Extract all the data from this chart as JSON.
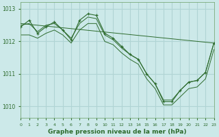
{
  "title": "Graphe pression niveau de la mer (hPa)",
  "background_color": "#cce9e9",
  "grid_color": "#b0d4d4",
  "line_color": "#2d6b2d",
  "xlim": [
    0,
    23
  ],
  "ylim": [
    1009.65,
    1013.2
  ],
  "yticks": [
    1010,
    1011,
    1012,
    1013
  ],
  "xticks": [
    0,
    1,
    2,
    3,
    4,
    5,
    6,
    7,
    8,
    9,
    10,
    11,
    12,
    13,
    14,
    15,
    16,
    17,
    18,
    19,
    20,
    21,
    22,
    23
  ],
  "main_line": {
    "x": [
      0,
      1,
      2,
      3,
      4,
      5,
      6,
      7,
      8,
      9,
      10,
      11,
      12,
      13,
      14,
      15,
      16,
      17,
      18,
      19,
      20,
      21,
      22,
      23
    ],
    "y": [
      1012.45,
      1012.65,
      1012.25,
      1012.45,
      1012.6,
      1012.35,
      1012.05,
      1012.65,
      1012.85,
      1012.8,
      1012.25,
      1012.1,
      1011.85,
      1011.6,
      1011.45,
      1011.0,
      1010.7,
      1010.15,
      1010.15,
      1010.5,
      1010.75,
      1010.8,
      1011.05,
      1011.95
    ]
  },
  "band_upper": {
    "x": [
      0,
      1,
      2,
      3,
      4,
      5,
      6,
      7,
      8,
      9,
      10,
      11,
      12,
      13,
      14,
      15,
      16,
      17,
      18,
      19,
      20,
      21,
      22,
      23
    ],
    "y": [
      1012.5,
      1012.55,
      1012.3,
      1012.5,
      1012.55,
      1012.35,
      1012.1,
      1012.55,
      1012.75,
      1012.7,
      1012.2,
      1012.05,
      1011.8,
      1011.6,
      1011.45,
      1011.0,
      1010.7,
      1010.2,
      1010.2,
      1010.5,
      1010.75,
      1010.8,
      1011.05,
      1011.95
    ]
  },
  "band_lower": {
    "x": [
      0,
      1,
      2,
      3,
      4,
      5,
      6,
      7,
      8,
      9,
      10,
      11,
      12,
      13,
      14,
      15,
      16,
      17,
      18,
      19,
      20,
      21,
      22,
      23
    ],
    "y": [
      1012.2,
      1012.2,
      1012.1,
      1012.25,
      1012.35,
      1012.2,
      1011.95,
      1012.35,
      1012.55,
      1012.55,
      1012.0,
      1011.9,
      1011.65,
      1011.45,
      1011.3,
      1010.85,
      1010.55,
      1010.05,
      1010.05,
      1010.3,
      1010.55,
      1010.6,
      1010.85,
      1011.75
    ]
  },
  "diagonal_line": {
    "x": [
      0,
      23
    ],
    "y": [
      1012.55,
      1011.95
    ]
  }
}
